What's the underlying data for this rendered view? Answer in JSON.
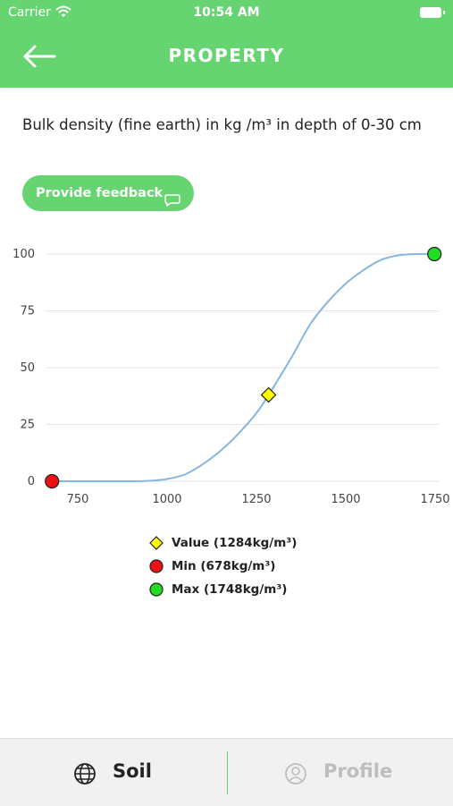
{
  "status_bar": {
    "carrier": "Carrier",
    "time": "10:54 AM"
  },
  "header": {
    "title": "PROPERTY",
    "back_icon": "arrow-left-icon"
  },
  "description": "Bulk density (fine earth) in kg /m³ in depth of 0-30 cm",
  "feedback_button": {
    "label": "Provide feedback",
    "icon": "chat-bubble-icon"
  },
  "chart_data": {
    "type": "line",
    "title": "",
    "xlabel": "",
    "ylabel": "",
    "xlim": [
      660,
      1760
    ],
    "ylim": [
      0,
      100
    ],
    "x_ticks": [
      750,
      1000,
      1250,
      1500,
      1750
    ],
    "y_ticks": [
      0,
      25,
      50,
      75,
      100
    ],
    "grid": true,
    "series": [
      {
        "x": [
          678,
          800,
          900,
          950,
          1000,
          1050,
          1100,
          1150,
          1200,
          1250,
          1284,
          1300,
          1350,
          1400,
          1450,
          1500,
          1550,
          1600,
          1650,
          1700,
          1748
        ],
        "y": [
          0,
          0,
          0,
          0.2,
          1,
          3,
          7.5,
          13.5,
          21,
          30,
          38,
          42,
          55,
          69,
          79,
          87,
          93,
          97.5,
          99.5,
          100,
          100
        ]
      }
    ],
    "markers": [
      {
        "label": "Value (1284kg/m³)",
        "x": 1284,
        "y": 38,
        "color": "#ffff00",
        "shape": "diamond"
      },
      {
        "label": "Min (678kg/m³)",
        "x": 678,
        "y": 0,
        "color": "#ee1111",
        "shape": "circle"
      },
      {
        "label": "Max (1748kg/m³)",
        "x": 1748,
        "y": 100,
        "color": "#22dd22",
        "shape": "circle"
      }
    ],
    "line_color": "#86b6e0",
    "legend_position": "bottom-center"
  },
  "tabs": [
    {
      "label": "Soil",
      "icon": "globe-icon",
      "active": true
    },
    {
      "label": "Profile",
      "icon": "user-circle-icon",
      "active": false
    }
  ],
  "colors": {
    "accent": "#66d571",
    "active_tab": "#222222",
    "inactive_tab": "#bdbdbd"
  }
}
